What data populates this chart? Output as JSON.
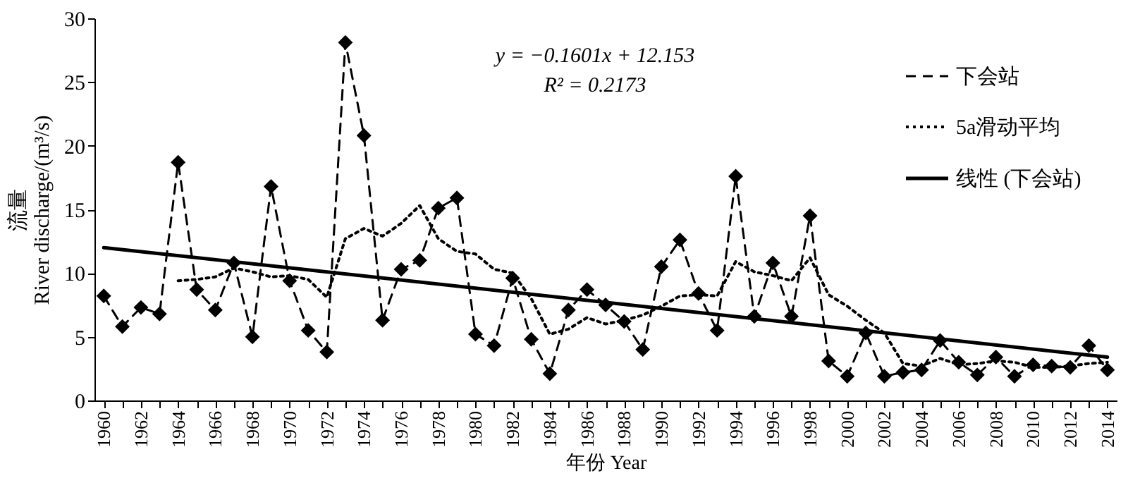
{
  "chart_data": {
    "type": "line",
    "xlabel": "年份 Year",
    "ylabel": "流量\nRiver discharge/(m³/s)",
    "x": [
      1960,
      1961,
      1962,
      1963,
      1964,
      1965,
      1966,
      1967,
      1968,
      1969,
      1970,
      1971,
      1972,
      1973,
      1974,
      1975,
      1976,
      1977,
      1978,
      1979,
      1980,
      1981,
      1982,
      1983,
      1984,
      1985,
      1986,
      1987,
      1988,
      1989,
      1990,
      1991,
      1992,
      1993,
      1994,
      1995,
      1996,
      1997,
      1998,
      1999,
      2000,
      2001,
      2002,
      2003,
      2004,
      2005,
      2006,
      2007,
      2008,
      2009,
      2010,
      2011,
      2012,
      2013,
      2014
    ],
    "series": [
      {
        "name": "下会站",
        "color": "#000000",
        "line_style": "dashed",
        "marker": "diamond",
        "values": [
          8.2,
          5.8,
          7.3,
          6.8,
          18.7,
          8.7,
          7.1,
          10.8,
          5.0,
          16.8,
          9.4,
          5.5,
          3.8,
          28.1,
          20.8,
          6.3,
          10.3,
          11.0,
          15.1,
          15.9,
          5.2,
          4.3,
          9.6,
          4.8,
          2.1,
          7.1,
          8.7,
          7.5,
          6.2,
          4.0,
          10.5,
          12.6,
          8.4,
          5.5,
          17.6,
          6.6,
          10.8,
          6.6,
          14.5,
          3.1,
          1.9,
          5.3,
          1.9,
          2.2,
          2.4,
          4.7,
          3.0,
          2.0,
          3.4,
          1.9,
          2.8,
          2.7,
          2.6,
          4.3,
          2.4
        ]
      },
      {
        "name": "5a滑动平均",
        "color": "#000000",
        "line_style": "dotted",
        "marker": "none",
        "values": [
          null,
          null,
          null,
          null,
          9.4,
          9.5,
          9.7,
          10.4,
          10.1,
          9.7,
          9.8,
          9.5,
          8.1,
          12.7,
          13.5,
          12.9,
          13.9,
          15.3,
          12.7,
          11.7,
          11.5,
          10.3,
          10.0,
          8.0,
          5.2,
          5.6,
          6.5,
          6.0,
          6.3,
          6.7,
          7.4,
          8.2,
          8.3,
          8.2,
          10.9,
          10.1,
          9.8,
          9.4,
          11.2,
          8.3,
          7.4,
          6.3,
          5.3,
          2.9,
          2.7,
          3.3,
          2.8,
          2.9,
          3.1,
          3.0,
          2.6,
          2.6,
          2.7,
          2.9,
          3.0
        ]
      },
      {
        "name": "线性 (下会站)",
        "color": "#000000",
        "line_style": "solid",
        "marker": "none",
        "x": [
          1960,
          2014
        ],
        "values": [
          12.0,
          3.4
        ]
      }
    ],
    "xlim": [
      1959.5,
      2014.5
    ],
    "xticks": [
      {
        "value": 1960,
        "label": "1960"
      },
      {
        "value": 1961,
        "label": null
      },
      {
        "value": 1962,
        "label": "1962"
      },
      {
        "value": 1963,
        "label": null
      },
      {
        "value": 1964,
        "label": "1964"
      },
      {
        "value": 1965,
        "label": null
      },
      {
        "value": 1966,
        "label": "1966"
      },
      {
        "value": 1967,
        "label": null
      },
      {
        "value": 1968,
        "label": "1968"
      },
      {
        "value": 1969,
        "label": null
      },
      {
        "value": 1970,
        "label": "1970"
      },
      {
        "value": 1971,
        "label": null
      },
      {
        "value": 1972,
        "label": "1972"
      },
      {
        "value": 1973,
        "label": null
      },
      {
        "value": 1974,
        "label": "1974"
      },
      {
        "value": 1975,
        "label": null
      },
      {
        "value": 1976,
        "label": "1976"
      },
      {
        "value": 1977,
        "label": null
      },
      {
        "value": 1978,
        "label": "1978"
      },
      {
        "value": 1979,
        "label": null
      },
      {
        "value": 1980,
        "label": "1980"
      },
      {
        "value": 1981,
        "label": null
      },
      {
        "value": 1982,
        "label": "1982"
      },
      {
        "value": 1983,
        "label": null
      },
      {
        "value": 1984,
        "label": "1984"
      },
      {
        "value": 1985,
        "label": null
      },
      {
        "value": 1986,
        "label": "1986"
      },
      {
        "value": 1987,
        "label": null
      },
      {
        "value": 1988,
        "label": "1988"
      },
      {
        "value": 1989,
        "label": null
      },
      {
        "value": 1990,
        "label": "1990"
      },
      {
        "value": 1991,
        "label": null
      },
      {
        "value": 1992,
        "label": "1992"
      },
      {
        "value": 1993,
        "label": null
      },
      {
        "value": 1994,
        "label": "1994"
      },
      {
        "value": 1995,
        "label": null
      },
      {
        "value": 1996,
        "label": "1996"
      },
      {
        "value": 1997,
        "label": null
      },
      {
        "value": 1998,
        "label": "1998"
      },
      {
        "value": 1999,
        "label": null
      },
      {
        "value": 2000,
        "label": "2000"
      },
      {
        "value": 2001,
        "label": null
      },
      {
        "value": 2002,
        "label": "2002"
      },
      {
        "value": 2003,
        "label": null
      },
      {
        "value": 2004,
        "label": "2004"
      },
      {
        "value": 2005,
        "label": null
      },
      {
        "value": 2006,
        "label": "2006"
      },
      {
        "value": 2007,
        "label": null
      },
      {
        "value": 2008,
        "label": "2008"
      },
      {
        "value": 2009,
        "label": null
      },
      {
        "value": 2010,
        "label": "2010"
      },
      {
        "value": 2011,
        "label": null
      },
      {
        "value": 2012,
        "label": "2012"
      },
      {
        "value": 2013,
        "label": null
      },
      {
        "value": 2014,
        "label": "2014"
      }
    ],
    "ylim": [
      0,
      30
    ],
    "yticks": [
      0,
      5,
      10,
      15,
      20,
      25,
      30
    ],
    "grid": false,
    "legend": "top right",
    "annotations": [
      "y = −0.1601x + 12.153",
      "R² = 0.2173"
    ]
  }
}
